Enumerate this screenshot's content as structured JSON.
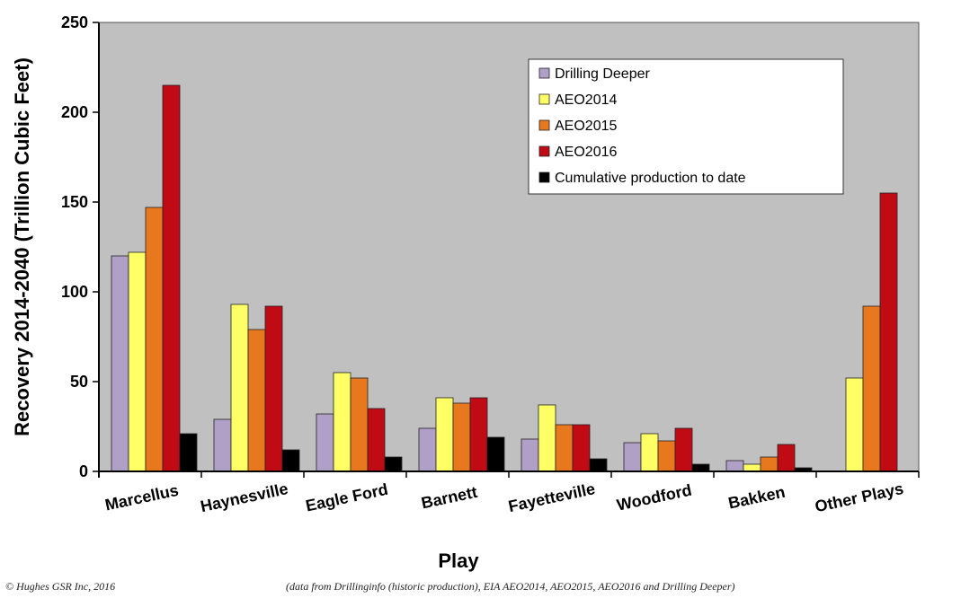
{
  "chart_data": {
    "type": "bar",
    "xlabel": "Play",
    "ylabel": "Recovery 2014-2040 (Trillion Cubic Feet)",
    "ylim": [
      0,
      250
    ],
    "yticks": [
      0,
      50,
      100,
      150,
      200,
      250
    ],
    "grid": false,
    "legend_position": "top-right",
    "background_color": "#c0c0c0",
    "categories": [
      "Marcellus",
      "Haynesville",
      "Eagle Ford",
      "Barnett",
      "Fayetteville",
      "Woodford",
      "Bakken",
      "Other Plays"
    ],
    "series": [
      {
        "name": "Drilling Deeper",
        "color": "#b0a0c8",
        "values": [
          120,
          29,
          32,
          24,
          18,
          16,
          6,
          null
        ]
      },
      {
        "name": "AEO2014",
        "color": "#ffff66",
        "values": [
          122,
          93,
          55,
          41,
          37,
          21,
          4,
          52
        ]
      },
      {
        "name": "AEO2015",
        "color": "#e8781e",
        "values": [
          147,
          79,
          52,
          38,
          26,
          17,
          8,
          92
        ]
      },
      {
        "name": "AEO2016",
        "color": "#c00a14",
        "values": [
          215,
          92,
          35,
          41,
          26,
          24,
          15,
          155
        ]
      },
      {
        "name": "Cumulative production to date",
        "color": "#000000",
        "values": [
          21,
          12,
          8,
          19,
          7,
          4,
          2,
          null
        ]
      }
    ]
  },
  "footer": {
    "copyright": "© Hughes GSR Inc, 2016",
    "source": "(data from Drillinginfo (historic production), EIA AEO2014, AEO2015, AEO2016 and Drilling Deeper)"
  }
}
